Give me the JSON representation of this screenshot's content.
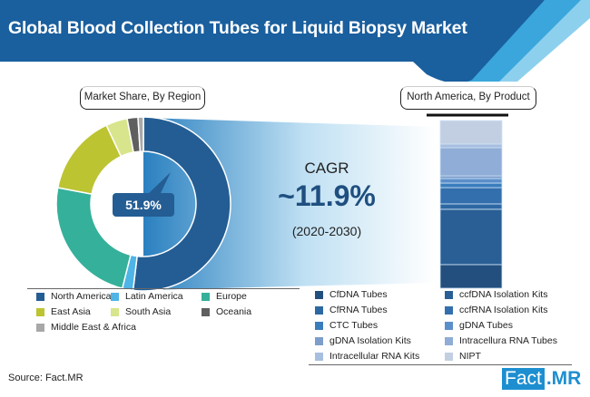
{
  "header": {
    "title": "Global Blood Collection Tubes for Liquid Biopsy Market"
  },
  "colors": {
    "brand": "#1a5f9e"
  },
  "chart_data": [
    {
      "type": "pie",
      "subtype": "donut",
      "title": "Market Share, By Region",
      "categories": [
        "North America",
        "Latin America",
        "Europe",
        "East Asia",
        "South Asia",
        "Oceania",
        "Middle East & Africa"
      ],
      "values": [
        51.9,
        2.0,
        24.1,
        15.0,
        4.0,
        2.0,
        1.0
      ],
      "colors": [
        "#245d93",
        "#4fb4e6",
        "#35b09a",
        "#bcc432",
        "#d8e58c",
        "#5f5f5f",
        "#a8a8a8"
      ],
      "data_labels": {
        "north_america": "51.9%"
      },
      "legend": "bottom"
    },
    {
      "type": "bar",
      "subtype": "stacked-100",
      "title": "North America, By Product",
      "categories": [
        "CfDNA Tubes",
        "ccfDNA Isolation Kits",
        "CfRNA Tubes",
        "ccfRNA Isolation Kits",
        "CTC Tubes",
        "gDNA Tubes",
        "gDNA Isolation Kits",
        "Intracellura RNA Tubes",
        "Intracellular RNA Kits",
        "NIPT"
      ],
      "values": [
        14.1,
        33.0,
        3.2,
        9.7,
        2.7,
        2.7,
        1.6,
        16.8,
        2.2,
        14.0
      ],
      "colors": [
        "#234f7e",
        "#2a5f95",
        "#2d68a3",
        "#336fad",
        "#3a7dbd",
        "#5b8fcb",
        "#7d9ecb",
        "#8fadd6",
        "#a7bedf",
        "#c2cfe3"
      ],
      "legend": "bottom"
    }
  ],
  "cagr": {
    "label": "CAGR",
    "value": "~11.9%",
    "period": "(2020-2030)"
  },
  "legend_region": [
    "North America",
    "Latin America",
    "Europe",
    "East Asia",
    "South Asia",
    "Oceania",
    "Middle East & Africa"
  ],
  "legend_product": [
    "CfDNA Tubes",
    "ccfDNA Isolation Kits",
    "CfRNA Tubes",
    "ccfRNA Isolation Kits",
    "CTC Tubes",
    "gDNA Tubes",
    "gDNA Isolation Kits",
    "Intracellura RNA Tubes",
    "Intracellular RNA Kits",
    "NIPT"
  ],
  "footer": {
    "source": "Source: Fact.MR",
    "logo_a": "Fact",
    "logo_b": ".MR"
  }
}
